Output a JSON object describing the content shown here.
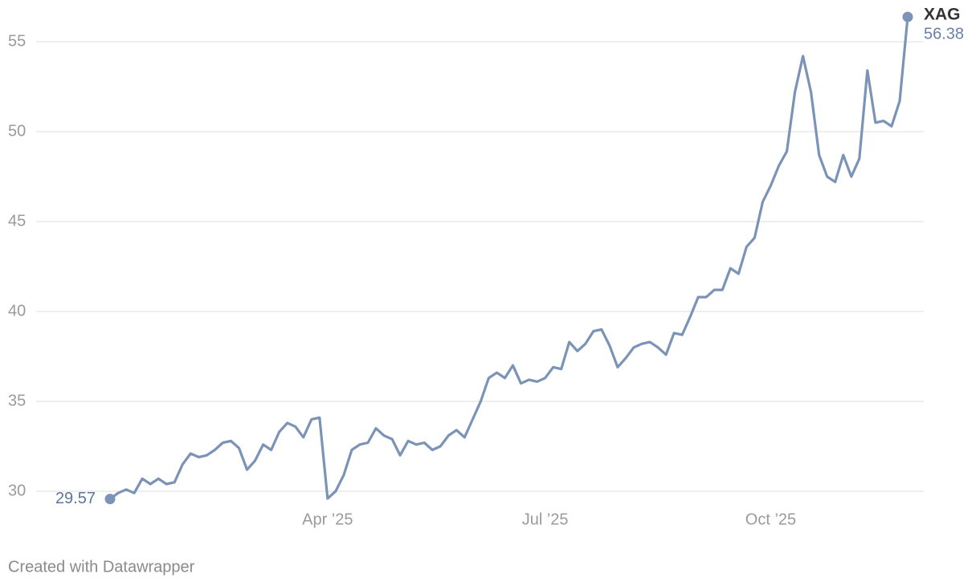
{
  "chart_data": {
    "type": "line",
    "credit": "Created with Datawrapper",
    "categories": [
      null,
      null,
      null,
      null,
      null,
      null,
      null,
      null,
      null,
      null,
      null,
      null,
      null,
      null,
      null,
      null,
      null,
      null,
      null,
      null,
      null,
      null,
      null,
      null,
      null,
      null,
      null,
      "Apr ’25",
      null,
      null,
      null,
      null,
      null,
      null,
      null,
      null,
      null,
      null,
      null,
      null,
      null,
      null,
      null,
      null,
      null,
      null,
      null,
      null,
      null,
      null,
      null,
      null,
      null,
      null,
      "Jul ’25",
      null,
      null,
      null,
      null,
      null,
      null,
      null,
      null,
      null,
      null,
      null,
      null,
      null,
      null,
      null,
      null,
      null,
      null,
      null,
      null,
      null,
      null,
      null,
      null,
      null,
      null,
      null,
      "Oct ’25",
      null,
      null,
      null,
      null,
      null,
      null,
      null,
      null,
      null,
      null,
      null,
      null,
      null,
      null,
      null,
      null,
      null
    ],
    "series": [
      {
        "name": "XAG",
        "color": "#7b93b6",
        "values": [
          29.57,
          29.9,
          30.1,
          29.9,
          30.7,
          30.4,
          30.7,
          30.4,
          30.5,
          31.5,
          32.1,
          31.9,
          32.0,
          32.3,
          32.7,
          32.8,
          32.4,
          31.2,
          31.7,
          32.6,
          32.3,
          33.3,
          33.8,
          33.6,
          33.0,
          34.0,
          34.1,
          29.6,
          30.0,
          30.9,
          32.3,
          32.6,
          32.7,
          33.5,
          33.1,
          32.9,
          32.0,
          32.8,
          32.6,
          32.7,
          32.3,
          32.5,
          33.1,
          33.4,
          33.0,
          34.0,
          35.0,
          36.3,
          36.6,
          36.3,
          37.0,
          36.0,
          36.2,
          36.1,
          36.3,
          36.9,
          36.8,
          38.3,
          37.8,
          38.2,
          38.9,
          39.0,
          38.1,
          36.9,
          37.4,
          38.0,
          38.2,
          38.3,
          38.0,
          37.6,
          38.8,
          38.7,
          39.7,
          40.8,
          40.8,
          41.2,
          41.2,
          42.4,
          42.1,
          43.6,
          44.1,
          46.1,
          47.0,
          48.1,
          48.9,
          52.2,
          54.2,
          52.2,
          48.7,
          47.5,
          47.2,
          48.7,
          47.5,
          48.5,
          53.4,
          50.5,
          50.6,
          50.3,
          51.7,
          56.38
        ]
      }
    ],
    "ylim": [
      29,
      56.5
    ],
    "yticks": [
      30,
      35,
      40,
      45,
      50,
      55
    ],
    "grid": true
  }
}
